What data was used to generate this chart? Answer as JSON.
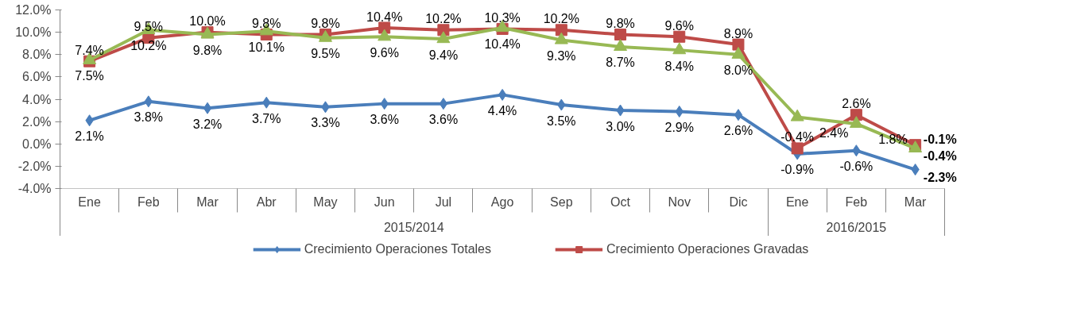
{
  "chart_data": {
    "type": "line",
    "categories": [
      "Ene",
      "Feb",
      "Mar",
      "Abr",
      "May",
      "Jun",
      "Jul",
      "Ago",
      "Sep",
      "Oct",
      "Nov",
      "Dic",
      "Ene",
      "Feb",
      "Mar"
    ],
    "annotations": [
      "2015/2014",
      "2016/2015"
    ],
    "ylim": [
      -4,
      12
    ],
    "yticks": [
      {
        "value": -4,
        "label": "-4.0%"
      },
      {
        "value": -2,
        "label": "-2.0%"
      },
      {
        "value": 0,
        "label": "0.0%"
      },
      {
        "value": 2,
        "label": "2.0%"
      },
      {
        "value": 4,
        "label": "4.0%"
      },
      {
        "value": 6,
        "label": "6.0%"
      },
      {
        "value": 8,
        "label": "8.0%"
      },
      {
        "value": 10,
        "label": "10.0%"
      },
      {
        "value": 12,
        "label": "12.0%"
      }
    ],
    "grid": false,
    "legend": "bottom",
    "line_style": "solid",
    "series": [
      {
        "name": "Crecimiento Operaciones Totales",
        "color": "#4a7ebb",
        "marker": "diamond",
        "values": [
          2.1,
          3.8,
          3.2,
          3.7,
          3.3,
          3.6,
          3.6,
          4.4,
          3.5,
          3.0,
          2.9,
          2.6,
          -0.9,
          -0.6,
          -2.3
        ],
        "value_labels": [
          "2.1%",
          "3.8%",
          "3.2%",
          "3.7%",
          "3.3%",
          "3.6%",
          "3.6%",
          "4.4%",
          "3.5%",
          "3.0%",
          "2.9%",
          "2.6%",
          "-0.9%",
          "-0.6%",
          "-2.3%"
        ]
      },
      {
        "name": "Crecimiento Operaciones Gravadas",
        "color": "#be4b48",
        "marker": "square",
        "values": [
          7.4,
          9.5,
          10.0,
          9.8,
          9.8,
          10.4,
          10.2,
          10.3,
          10.2,
          9.8,
          9.6,
          8.9,
          -0.4,
          2.6,
          -0.1
        ],
        "value_labels": [
          "7.4%",
          "9.5%",
          "10.0%",
          "9.8%",
          "9.8%",
          "10.4%",
          "10.2%",
          "10.3%",
          "10.2%",
          "9.8%",
          "9.6%",
          "8.9%",
          "-0.4%",
          "2.6%",
          "-0.1%"
        ]
      },
      {
        "color": "#98b954",
        "marker": "triangle",
        "values": [
          7.5,
          10.2,
          9.8,
          10.1,
          9.5,
          9.6,
          9.4,
          10.4,
          9.3,
          8.7,
          8.4,
          8.0,
          2.4,
          1.8,
          -0.4
        ],
        "value_labels": [
          "7.5%",
          "10.2%",
          "9.8%",
          "10.1%",
          "9.5%",
          "9.6%",
          "9.4%",
          "10.4%",
          "9.3%",
          "8.7%",
          "8.4%",
          "8.0%",
          "2.4%",
          "1.8%",
          "-0.4%"
        ]
      }
    ]
  }
}
